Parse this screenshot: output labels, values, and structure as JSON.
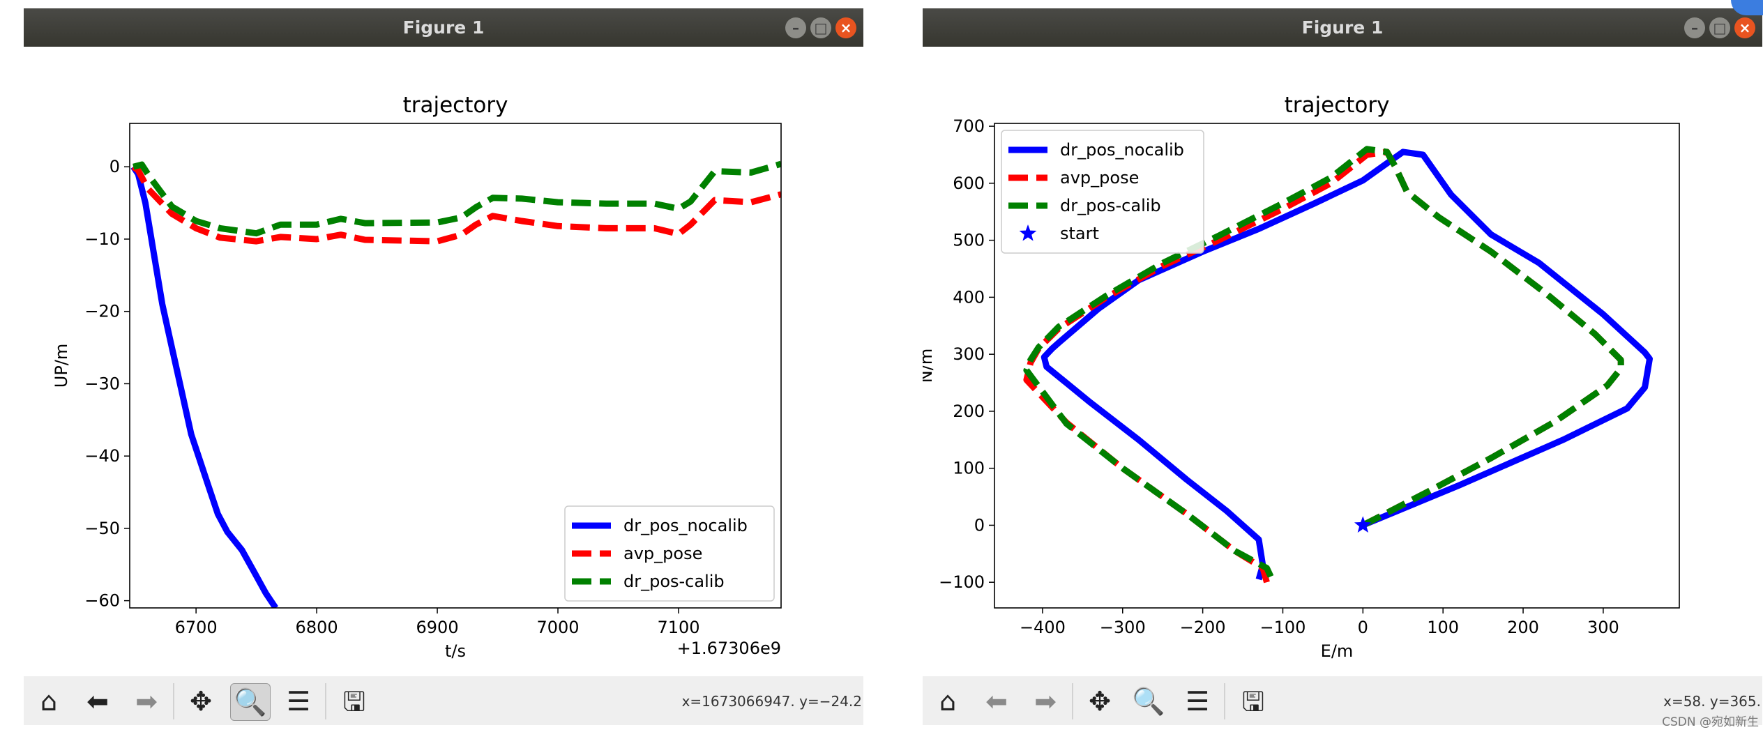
{
  "windows": [
    {
      "id": "left",
      "title": "Figure 1",
      "coords_readout": "x=1673066947. y=−24.2"
    },
    {
      "id": "right",
      "title": "Figure 1",
      "coords_readout": "x=58. y=365."
    }
  ],
  "toolbar": [
    "home-icon",
    "back-arrow-icon",
    "forward-arrow-icon",
    "pan-move-icon",
    "zoom-magnifier-icon",
    "configure-subplots-icon",
    "save-disk-icon"
  ],
  "watermark_credit": "CSDN @宛如新生",
  "chart_data": [
    {
      "type": "line",
      "title": "trajectory",
      "xlabel": "t/s",
      "ylabel": "UP/m",
      "offset_label": "+1.67306e9",
      "xlim": [
        6645,
        7185
      ],
      "ylim": [
        -61,
        6
      ],
      "xticks": [
        6700,
        6800,
        6900,
        7000,
        7100
      ],
      "yticks": [
        0,
        -10,
        -20,
        -30,
        -40,
        -50,
        -60
      ],
      "xtick_labels": [
        "6700",
        "6800",
        "6900",
        "7000",
        "7100"
      ],
      "ytick_labels": [
        "0",
        "−10",
        "−20",
        "−30",
        "−40",
        "−50",
        "−60"
      ],
      "legend_position": "lower-right",
      "legend": [
        "dr_pos_nocalib",
        "avp_pose",
        "dr_pos-calib"
      ],
      "series": [
        {
          "name": "dr_pos_nocalib",
          "color": "#0000ff",
          "style": "solid",
          "points": [
            [
              6648,
              0
            ],
            [
              6652,
              -1
            ],
            [
              6658,
              -5
            ],
            [
              6665,
              -12
            ],
            [
              6672,
              -19
            ],
            [
              6680,
              -25
            ],
            [
              6688,
              -31
            ],
            [
              6696,
              -37
            ],
            [
              6702,
              -40
            ],
            [
              6710,
              -44
            ],
            [
              6718,
              -48
            ],
            [
              6726,
              -50.5
            ],
            [
              6738,
              -53
            ],
            [
              6748,
              -56
            ],
            [
              6758,
              -59
            ],
            [
              6766,
              -61
            ]
          ]
        },
        {
          "name": "avp_pose",
          "color": "#ff0000",
          "style": "dashed",
          "points": [
            [
              6648,
              0
            ],
            [
              6652,
              -0.5
            ],
            [
              6660,
              -3
            ],
            [
              6680,
              -6.5
            ],
            [
              6700,
              -8.5
            ],
            [
              6720,
              -9.8
            ],
            [
              6750,
              -10.3
            ],
            [
              6770,
              -9.7
            ],
            [
              6800,
              -10
            ],
            [
              6820,
              -9.4
            ],
            [
              6840,
              -10.1
            ],
            [
              6900,
              -10.3
            ],
            [
              6920,
              -9.4
            ],
            [
              6932,
              -8
            ],
            [
              6946,
              -6.8
            ],
            [
              6970,
              -7.5
            ],
            [
              7000,
              -8.2
            ],
            [
              7040,
              -8.5
            ],
            [
              7080,
              -8.5
            ],
            [
              7100,
              -9.3
            ],
            [
              7110,
              -8
            ],
            [
              7130,
              -4.6
            ],
            [
              7160,
              -4.9
            ],
            [
              7185,
              -3.8
            ]
          ]
        },
        {
          "name": "dr_pos-calib",
          "color": "#008000",
          "style": "dashed",
          "points": [
            [
              6648,
              0
            ],
            [
              6655,
              0.3
            ],
            [
              6662,
              -1.5
            ],
            [
              6680,
              -5.5
            ],
            [
              6700,
              -7.5
            ],
            [
              6720,
              -8.5
            ],
            [
              6750,
              -9.2
            ],
            [
              6770,
              -8
            ],
            [
              6800,
              -8
            ],
            [
              6820,
              -7.2
            ],
            [
              6840,
              -7.8
            ],
            [
              6900,
              -7.7
            ],
            [
              6920,
              -7
            ],
            [
              6932,
              -5.6
            ],
            [
              6946,
              -4.3
            ],
            [
              6970,
              -4.4
            ],
            [
              7000,
              -4.9
            ],
            [
              7040,
              -5.1
            ],
            [
              7080,
              -5.1
            ],
            [
              7100,
              -5.8
            ],
            [
              7110,
              -4.8
            ],
            [
              7130,
              -0.6
            ],
            [
              7160,
              -0.8
            ],
            [
              7185,
              0.4
            ]
          ]
        }
      ]
    },
    {
      "type": "line",
      "title": "trajectory",
      "xlabel": "E/m",
      "ylabel": "N/m",
      "xlim": [
        -460,
        395
      ],
      "ylim": [
        -145,
        705
      ],
      "xticks": [
        -400,
        -300,
        -200,
        -100,
        0,
        100,
        200,
        300
      ],
      "yticks": [
        -100,
        0,
        100,
        200,
        300,
        400,
        500,
        600,
        700
      ],
      "xtick_labels": [
        "−400",
        "−300",
        "−200",
        "−100",
        "0",
        "100",
        "200",
        "300"
      ],
      "ytick_labels": [
        "−100",
        "0",
        "100",
        "200",
        "300",
        "400",
        "500",
        "600",
        "700"
      ],
      "legend_position": "upper-left",
      "legend": [
        "dr_pos_nocalib",
        "avp_pose",
        "dr_pos-calib",
        "start"
      ],
      "series": [
        {
          "name": "dr_pos_nocalib",
          "color": "#0000ff",
          "style": "solid",
          "points": [
            [
              0,
              0
            ],
            [
              120,
              70
            ],
            [
              250,
              150
            ],
            [
              330,
              205
            ],
            [
              352,
              242
            ],
            [
              358,
              292
            ],
            [
              352,
              303
            ],
            [
              300,
              370
            ],
            [
              220,
              460
            ],
            [
              160,
              510
            ],
            [
              110,
              580
            ],
            [
              75,
              650
            ],
            [
              50,
              655
            ],
            [
              40,
              645
            ],
            [
              0,
              605
            ],
            [
              -60,
              565
            ],
            [
              -130,
              520
            ],
            [
              -200,
              480
            ],
            [
              -280,
              430
            ],
            [
              -330,
              380
            ],
            [
              -380,
              320
            ],
            [
              -388,
              310
            ],
            [
              -398,
              295
            ],
            [
              -395,
              278
            ],
            [
              -340,
              215
            ],
            [
              -280,
              150
            ],
            [
              -220,
              80
            ],
            [
              -170,
              25
            ],
            [
              -130,
              -25
            ],
            [
              -125,
              -70
            ],
            [
              -130,
              -95
            ]
          ]
        },
        {
          "name": "avp_pose",
          "color": "#ff0000",
          "style": "dashed",
          "points": [
            [
              0,
              0
            ],
            [
              80,
              58
            ],
            [
              160,
              118
            ],
            [
              240,
              182
            ],
            [
              305,
              245
            ],
            [
              322,
              275
            ],
            [
              322,
              290
            ],
            [
              290,
              335
            ],
            [
              230,
              405
            ],
            [
              160,
              480
            ],
            [
              95,
              540
            ],
            [
              55,
              585
            ],
            [
              40,
              630
            ],
            [
              30,
              655
            ],
            [
              5,
              650
            ],
            [
              -40,
              600
            ],
            [
              -100,
              555
            ],
            [
              -180,
              500
            ],
            [
              -250,
              455
            ],
            [
              -320,
              400
            ],
            [
              -380,
              345
            ],
            [
              -405,
              310
            ],
            [
              -415,
              285
            ],
            [
              -420,
              255
            ],
            [
              -370,
              180
            ],
            [
              -300,
              100
            ],
            [
              -220,
              20
            ],
            [
              -160,
              -45
            ],
            [
              -125,
              -75
            ],
            [
              -120,
              -100
            ]
          ]
        },
        {
          "name": "dr_pos-calib",
          "color": "#008000",
          "style": "dashed",
          "points": [
            [
              0,
              0
            ],
            [
              80,
              58
            ],
            [
              160,
              118
            ],
            [
              240,
              182
            ],
            [
              305,
              245
            ],
            [
              322,
              275
            ],
            [
              322,
              290
            ],
            [
              290,
              335
            ],
            [
              230,
              405
            ],
            [
              160,
              480
            ],
            [
              95,
              540
            ],
            [
              55,
              585
            ],
            [
              40,
              630
            ],
            [
              30,
              655
            ],
            [
              5,
              660
            ],
            [
              -40,
              610
            ],
            [
              -100,
              565
            ],
            [
              -180,
              508
            ],
            [
              -250,
              460
            ],
            [
              -320,
              403
            ],
            [
              -380,
              348
            ],
            [
              -405,
              312
            ],
            [
              -415,
              290
            ],
            [
              -420,
              272
            ],
            [
              -370,
              178
            ],
            [
              -300,
              100
            ],
            [
              -220,
              20
            ],
            [
              -160,
              -45
            ],
            [
              -120,
              -75
            ],
            [
              -115,
              -90
            ]
          ]
        },
        {
          "name": "start",
          "color": "#0000ff",
          "style": "marker-star",
          "points": [
            [
              0,
              0
            ]
          ]
        }
      ]
    }
  ]
}
